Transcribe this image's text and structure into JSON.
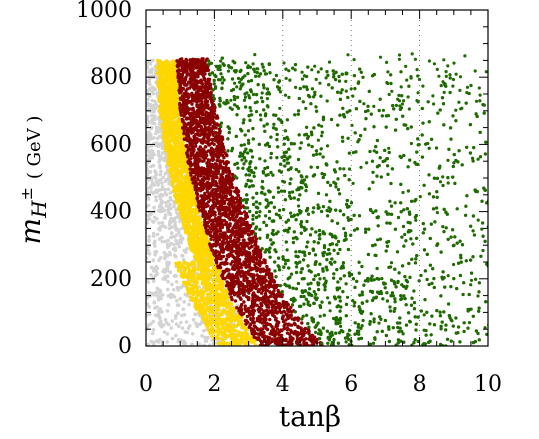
{
  "chart_data": {
    "type": "scatter",
    "xlim": [
      0,
      10
    ],
    "ylim": [
      0,
      1000
    ],
    "x_ticks": [
      0,
      2,
      4,
      6,
      8,
      10
    ],
    "y_ticks": [
      0,
      200,
      400,
      600,
      800,
      1000
    ],
    "x_tick_labels": [
      "0",
      "2",
      "4",
      "6",
      "8",
      "10"
    ],
    "y_tick_labels": [
      "0",
      "200",
      "400",
      "600",
      "800",
      "1000"
    ],
    "xlabel": "tanβ",
    "ylabel_main": "m",
    "ylabel_sub": "H",
    "ylabel_sup": "±",
    "ylabel_unit": "( GeV )",
    "grid": "dotted vertical lines at x = 2, 4, 6, 8",
    "regions": [
      {
        "color": "#d3d3d3",
        "description": "light grey points, leftmost band",
        "x_range": [
          0.05,
          2.0
        ],
        "y_max": 850
      },
      {
        "color": "#ffd700",
        "description": "yellow band",
        "boundary_at_y0": 3.3,
        "boundary_at_top": 0.9
      },
      {
        "color": "#8b0000",
        "description": "dark red band",
        "boundary_at_y0": 5.2,
        "boundary_at_top": 1.8
      },
      {
        "color": "#1f6b00",
        "description": "green region extending to x = 10",
        "y_top_at_x2": 850,
        "y_top_at_x10": 800
      }
    ],
    "boundaries": {
      "yellow_red": [
        [
          0.9,
          850
        ],
        [
          1.0,
          700
        ],
        [
          1.2,
          560
        ],
        [
          1.5,
          420
        ],
        [
          2.0,
          260
        ],
        [
          2.5,
          140
        ],
        [
          3.0,
          50
        ],
        [
          3.3,
          0
        ]
      ],
      "red_green": [
        [
          1.8,
          850
        ],
        [
          2.0,
          720
        ],
        [
          2.5,
          520
        ],
        [
          3.0,
          380
        ],
        [
          3.5,
          250
        ],
        [
          4.0,
          150
        ],
        [
          4.5,
          80
        ],
        [
          5.0,
          25
        ],
        [
          5.2,
          0
        ]
      ]
    }
  }
}
